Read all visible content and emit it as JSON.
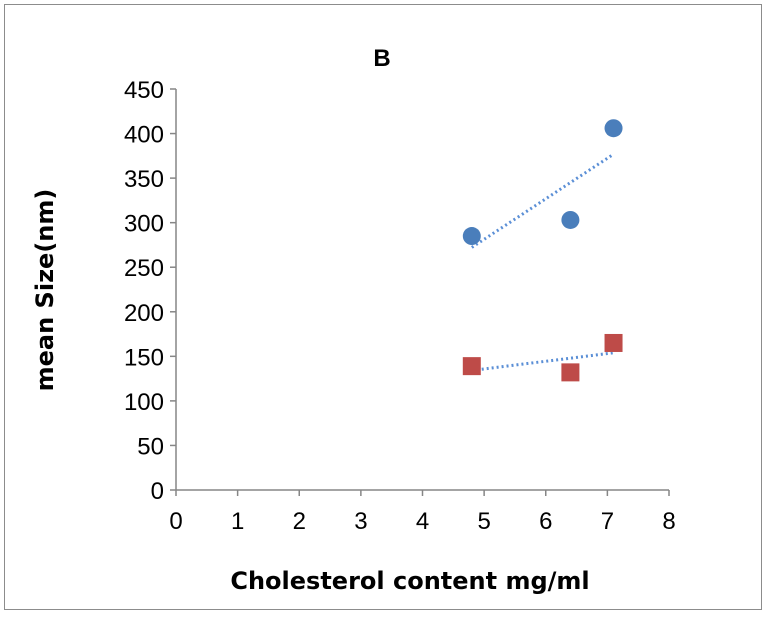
{
  "chart_data": {
    "type": "scatter",
    "title": "B",
    "xlabel": "Cholesterol content mg/ml",
    "ylabel": "mean Size(nm)",
    "xlim": [
      0,
      8
    ],
    "ylim": [
      0,
      450
    ],
    "xticks": [
      "0",
      "1",
      "2",
      "3",
      "4",
      "5",
      "6",
      "7",
      "8"
    ],
    "yticks": [
      "0",
      "50",
      "100",
      "150",
      "200",
      "250",
      "300",
      "350",
      "400",
      "450"
    ],
    "grid": false,
    "legend": "none",
    "series": [
      {
        "marker": "circle",
        "color": "#4a7ebb",
        "trendline": "linear",
        "trendline_color": "#5b8fd6",
        "points": [
          [
            4.8,
            285
          ],
          [
            6.4,
            303
          ],
          [
            7.1,
            406
          ]
        ]
      },
      {
        "marker": "square",
        "color": "#be4b48",
        "trendline": "linear",
        "trendline_color": "#5b8fd6",
        "points": [
          [
            4.8,
            139
          ],
          [
            6.4,
            132
          ],
          [
            7.1,
            165
          ]
        ]
      }
    ]
  }
}
